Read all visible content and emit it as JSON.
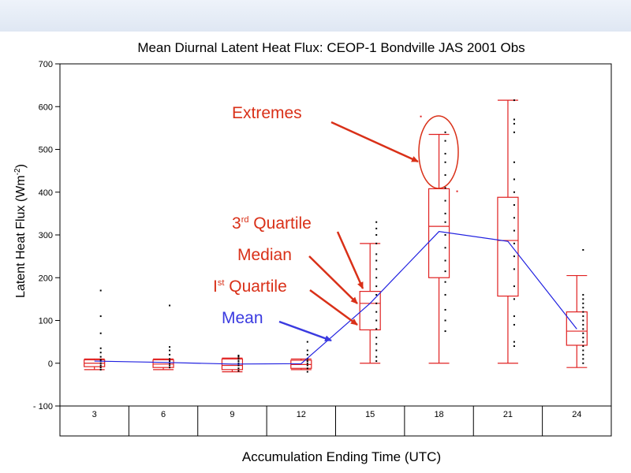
{
  "chart_data": {
    "type": "box",
    "title": "Mean Diurnal Latent Heat Flux: CEOP-1 Bondville JAS 2001 Obs",
    "xlabel": "Accumulation Ending Time (UTC)",
    "ylabel_main": "Latent Heat Flux (Wm",
    "ylabel_sup": "-2",
    "ylabel_close": ")",
    "ylim": [
      -100,
      700
    ],
    "yticks": [
      -100,
      0,
      100,
      200,
      300,
      400,
      500,
      600,
      700
    ],
    "ytick_labels": [
      "- 100",
      "0",
      "100",
      "200",
      "300",
      "400",
      "500",
      "600",
      "700"
    ],
    "categories": [
      "3",
      "6",
      "9",
      "12",
      "15",
      "18",
      "21",
      "24"
    ],
    "boxes": [
      {
        "min": -15,
        "q1": -8,
        "median": 0,
        "q3": 8,
        "max": 10
      },
      {
        "min": -15,
        "q1": -10,
        "median": -2,
        "q3": 8,
        "max": 10
      },
      {
        "min": -20,
        "q1": -15,
        "median": -5,
        "q3": 10,
        "max": 12
      },
      {
        "min": -15,
        "q1": -12,
        "median": -3,
        "q3": 7,
        "max": 10
      },
      {
        "min": 0,
        "q1": 78,
        "median": 140,
        "q3": 168,
        "max": 280
      },
      {
        "min": 0,
        "q1": 200,
        "median": 320,
        "q3": 408,
        "max": 535
      },
      {
        "min": 0,
        "q1": 157,
        "median": 287,
        "q3": 388,
        "max": 615
      },
      {
        "min": -10,
        "q1": 42,
        "median": 75,
        "q3": 120,
        "max": 205
      }
    ],
    "mean": [
      5,
      2,
      -2,
      -1,
      140,
      308,
      285,
      80
    ],
    "scatter": [
      [
        -15,
        -10,
        -5,
        0,
        5,
        8,
        15,
        25,
        35,
        70,
        110,
        170
      ],
      [
        -10,
        -5,
        0,
        5,
        10,
        20,
        30,
        38,
        135
      ],
      [
        -18,
        -12,
        -5,
        0,
        5,
        10,
        15,
        18
      ],
      [
        -20,
        -12,
        -5,
        0,
        5,
        10,
        20,
        30,
        50
      ],
      [
        5,
        15,
        30,
        45,
        60,
        80,
        100,
        120,
        140,
        160,
        180,
        200,
        220,
        240,
        255,
        280,
        300,
        315,
        330
      ],
      [
        75,
        100,
        125,
        160,
        190,
        215,
        240,
        270,
        300,
        330,
        350,
        380,
        410,
        440,
        470,
        490,
        520,
        540
      ],
      [
        40,
        50,
        90,
        110,
        150,
        180,
        220,
        250,
        280,
        310,
        340,
        370,
        400,
        430,
        470,
        540,
        560,
        570,
        615
      ],
      [
        0,
        10,
        20,
        30,
        40,
        50,
        60,
        70,
        80,
        90,
        100,
        110,
        120,
        130,
        140,
        150,
        160,
        265
      ]
    ],
    "outliers": [
      {
        "cat": 5,
        "value": 577,
        "dx": -23
      },
      {
        "cat": 5,
        "value": 402,
        "dx": 23
      }
    ],
    "colors": {
      "box": "#e02020",
      "mean": "#2020e0",
      "points": "#000000",
      "annotation": "#d93018",
      "mean_annotation": "#3a3ae0"
    }
  },
  "annotations": {
    "extremes": "Extremes",
    "q3_prefix": "3",
    "q3_sup": "rd",
    "q3_suffix": " Quartile",
    "median": "Median",
    "q1_prefix": "I",
    "q1_sup": "st",
    "q1_suffix": " Quartile",
    "mean": "Mean"
  }
}
